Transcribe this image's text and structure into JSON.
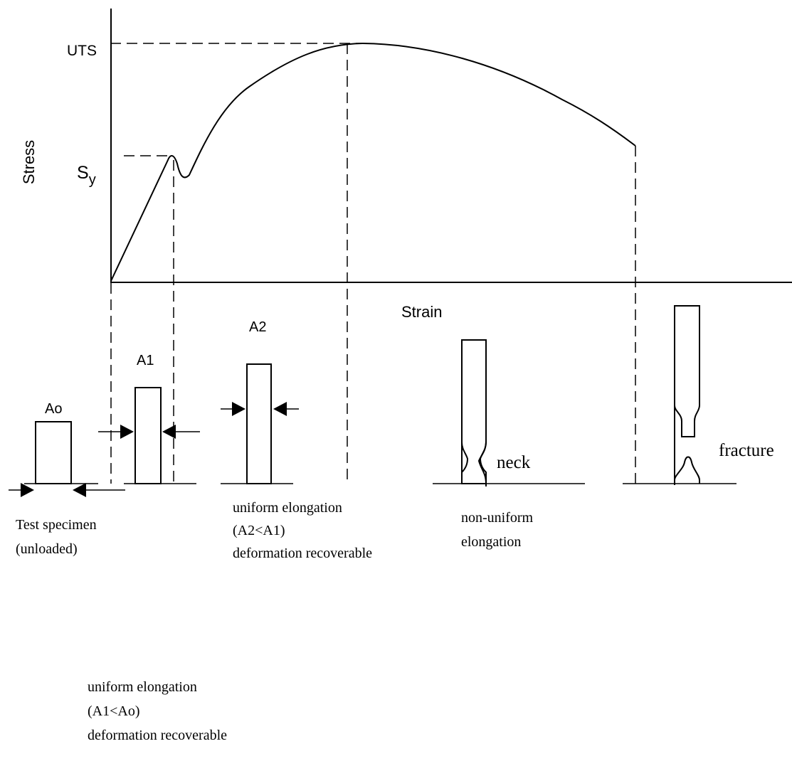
{
  "axes": {
    "y_label": "Stress",
    "x_label": "Strain",
    "uts_label": "UTS",
    "sy_label": "S",
    "sy_subscript": "y"
  },
  "specimens": {
    "a0_label": "Ao",
    "a1_label": "A1",
    "a2_label": "A2",
    "neck_label": "neck",
    "fracture_label": "fracture"
  },
  "captions": {
    "test_specimen": [
      "Test specimen",
      "(unloaded)"
    ],
    "uniform_a1": [
      "uniform elongation",
      "(A1<Ao)",
      "deformation recoverable"
    ],
    "uniform_a2": [
      "uniform elongation",
      "(A2<A1)",
      "deformation recoverable"
    ],
    "non_uniform": [
      "non-uniform",
      "elongation"
    ]
  }
}
